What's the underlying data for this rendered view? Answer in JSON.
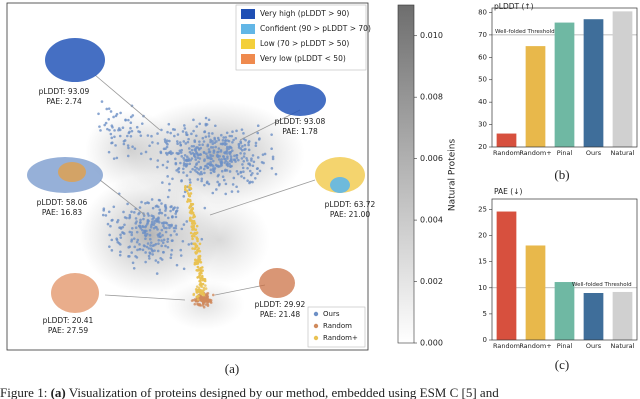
{
  "panel_a": {
    "legend": [
      {
        "label": "Very high (pLDDT > 90)",
        "color": "#1f4fb4"
      },
      {
        "label": "Confident (90 > pLDDT > 70)",
        "color": "#62b6e6"
      },
      {
        "label": "Low (70 > pLDDT > 50)",
        "color": "#f3cf3b"
      },
      {
        "label": "Very low (pLDDT < 50)",
        "color": "#ef8a4e"
      }
    ],
    "annotations": [
      {
        "plddt": "pLDDT: 93.09",
        "pae": "PAE: 2.74"
      },
      {
        "plddt": "pLDDT: 93.08",
        "pae": "PAE: 1.78"
      },
      {
        "plddt": "pLDDT: 58.06",
        "pae": "PAE: 16.83"
      },
      {
        "plddt": "pLDDT: 63.72",
        "pae": "PAE: 21.00"
      },
      {
        "plddt": "pLDDT: 20.41",
        "pae": "PAE: 27.59"
      },
      {
        "plddt": "pLDDT: 29.92",
        "pae": "PAE: 21.48"
      }
    ],
    "scatter_legend": [
      {
        "label": "Ours",
        "color": "#6d90c6"
      },
      {
        "label": "Random",
        "color": "#d08a5c"
      },
      {
        "label": "Random+",
        "color": "#e9c253"
      }
    ],
    "colorbar": {
      "label": "Natural Proteins",
      "lim": [
        0,
        0.011
      ],
      "ticks": [
        {
          "value": 0,
          "label": "0.000"
        },
        {
          "value": 0.002,
          "label": "0.002"
        },
        {
          "value": 0.004,
          "label": "0.004"
        },
        {
          "value": 0.006,
          "label": "0.006"
        },
        {
          "value": 0.008,
          "label": "0.008"
        },
        {
          "value": 0.01,
          "label": "0.010"
        }
      ]
    },
    "tag": "(a)"
  },
  "charts": [
    {
      "type": "bar",
      "title": "pLDDT (↑)",
      "categories": [
        "Random",
        "Random+",
        "Pinal",
        "Ours",
        "Natural"
      ],
      "values": [
        26,
        65,
        75.5,
        77,
        80.5
      ],
      "colors": [
        "#d7503e",
        "#e8b84b",
        "#6fb8a3",
        "#3f6e9a",
        "#d0d0d0"
      ],
      "ylim": [
        20,
        82
      ],
      "yticks": [
        20,
        30,
        40,
        50,
        60,
        70,
        80
      ],
      "threshold": 70,
      "threshold_label": "Well-folded Threshold",
      "tag": "(b)"
    },
    {
      "type": "bar",
      "title": "PAE (↓)",
      "categories": [
        "Random",
        "Random+",
        "Pinal",
        "Ours",
        "Natural"
      ],
      "values": [
        24.6,
        18.1,
        11.1,
        9,
        9.2
      ],
      "colors": [
        "#d7503e",
        "#e8b84b",
        "#6fb8a3",
        "#3f6e9a",
        "#d0d0d0"
      ],
      "ylim": [
        0,
        27
      ],
      "yticks": [
        0,
        5,
        10,
        15,
        20,
        25
      ],
      "threshold": 10,
      "threshold_label": "Well-folded Threshold",
      "tag": "(c)"
    }
  ],
  "caption": {
    "label": "Figure 1:",
    "ref": "(a)",
    "text": "Visualization of proteins designed by our method, embedded using ESM C [5] and"
  }
}
